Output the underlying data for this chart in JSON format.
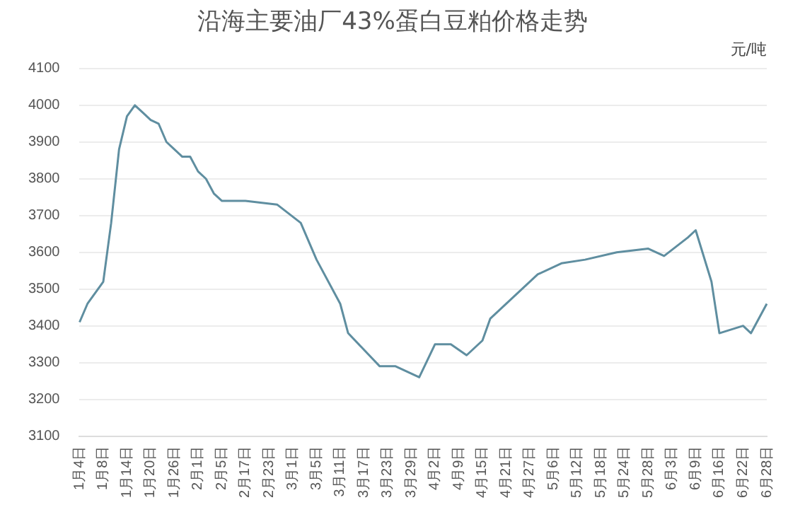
{
  "chart_data": {
    "type": "line",
    "title": "沿海主要油厂43%蛋白豆粕价格走势",
    "annotations": [
      "元/吨"
    ],
    "categories": [
      "1月4日",
      null,
      null,
      "1月8日",
      null,
      null,
      "1月14日",
      null,
      null,
      "1月20日",
      null,
      null,
      "1月26日",
      null,
      null,
      "2月1日",
      null,
      null,
      "2月5日",
      null,
      null,
      "2月17日",
      null,
      null,
      "2月23日",
      null,
      null,
      "3月1日",
      null,
      null,
      "3月5日",
      null,
      null,
      "3月11日",
      null,
      null,
      "3月17日",
      null,
      null,
      "3月23日",
      null,
      null,
      "3月29日",
      null,
      null,
      "4月2日",
      null,
      null,
      "4月9日",
      null,
      null,
      "4月15日",
      null,
      null,
      "4月21日",
      null,
      null,
      "4月27日",
      null,
      null,
      "5月6日",
      null,
      null,
      "5月12日",
      null,
      null,
      "5月18日",
      null,
      null,
      "5月24日",
      null,
      null,
      "5月28日",
      null,
      null,
      "6月3日",
      null,
      null,
      "6月9日",
      null,
      null,
      "6月16日",
      null,
      null,
      "6月22日",
      null,
      null,
      "6月28日"
    ],
    "series": [
      {
        "color": "#5f8ea0",
        "values": [
          3410,
          3460,
          null,
          3520,
          3680,
          3880,
          3970,
          4000,
          3980,
          3960,
          3950,
          3900,
          3880,
          3860,
          3860,
          3820,
          3800,
          3760,
          3740,
          null,
          null,
          3740,
          null,
          null,
          null,
          3730,
          null,
          null,
          3680,
          null,
          3580,
          null,
          null,
          3460,
          3380,
          null,
          null,
          null,
          3290,
          null,
          3290,
          null,
          null,
          3260,
          null,
          3350,
          null,
          3350,
          null,
          3320,
          null,
          3360,
          3420,
          null,
          null,
          3480,
          null,
          null,
          3540,
          null,
          null,
          3570,
          null,
          null,
          3580,
          null,
          null,
          null,
          3600,
          null,
          null,
          null,
          3610,
          null,
          3590,
          null,
          null,
          3640,
          3660,
          null,
          3520,
          3380,
          null,
          null,
          3400,
          3380,
          null,
          3460
        ]
      }
    ],
    "ylim": [
      3100,
      4100
    ],
    "yticks": [
      3100,
      3200,
      3300,
      3400,
      3500,
      3600,
      3700,
      3800,
      3900,
      4000,
      4100
    ],
    "grid": "y",
    "legend": false,
    "marker": "none",
    "line_style": "solid"
  }
}
